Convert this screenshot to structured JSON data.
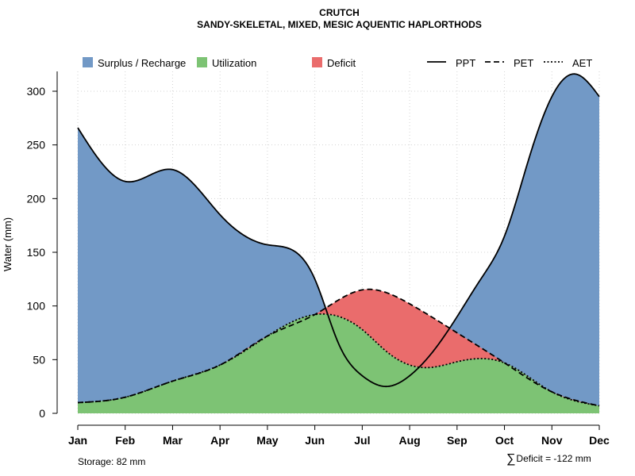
{
  "title": "CRUTCH",
  "subtitle": "SANDY-SKELETAL, MIXED, MESIC AQUENTIC HAPLORTHODS",
  "storage_label": "Storage: 82 mm",
  "deficit_label": "Deficit = -122 mm",
  "colors": {
    "surplus": "#7299C6",
    "utilization": "#7DC374",
    "deficit": "#EA6C6C",
    "grid": "#d3d3d3"
  },
  "chart_data": {
    "type": "area",
    "ylabel": "Water (mm)",
    "xlabel": "",
    "ylim": [
      0,
      320
    ],
    "yticks": [
      0,
      50,
      100,
      150,
      200,
      250,
      300
    ],
    "categories": [
      "Jan",
      "Feb",
      "Mar",
      "Apr",
      "May",
      "Jun",
      "Jul",
      "Aug",
      "Sep",
      "Oct",
      "Nov",
      "Dec"
    ],
    "series": [
      {
        "name": "PPT",
        "line": "solid",
        "x": [
          1,
          2,
          3,
          4,
          5,
          6,
          6.5,
          7,
          7.5,
          8,
          8.5,
          9,
          9.5,
          10,
          10.5,
          11,
          11.5,
          12
        ],
        "values": [
          266,
          216,
          227,
          185,
          157,
          125,
          65,
          35,
          25,
          35,
          58,
          90,
          125,
          165,
          235,
          295,
          316,
          295
        ]
      },
      {
        "name": "PET",
        "line": "dashed",
        "x": [
          1,
          2,
          3,
          4,
          5,
          6,
          7,
          8,
          9,
          10,
          11,
          12
        ],
        "values": [
          10,
          15,
          30,
          45,
          72,
          92,
          115,
          102,
          75,
          47,
          20,
          7
        ]
      },
      {
        "name": "AET",
        "line": "dotted",
        "x": [
          1,
          2,
          3,
          4,
          5,
          6,
          7,
          7.5,
          8,
          8.5,
          9,
          9.5,
          10,
          11,
          12
        ],
        "values": [
          10,
          15,
          30,
          45,
          72,
          92,
          78,
          58,
          45,
          43,
          48,
          51,
          47,
          20,
          7
        ]
      }
    ],
    "legend": {
      "position": "top",
      "areas": [
        "Surplus / Recharge",
        "Utilization",
        "Deficit"
      ],
      "lines": [
        "PPT",
        "PET",
        "AET"
      ]
    },
    "grid": true
  }
}
